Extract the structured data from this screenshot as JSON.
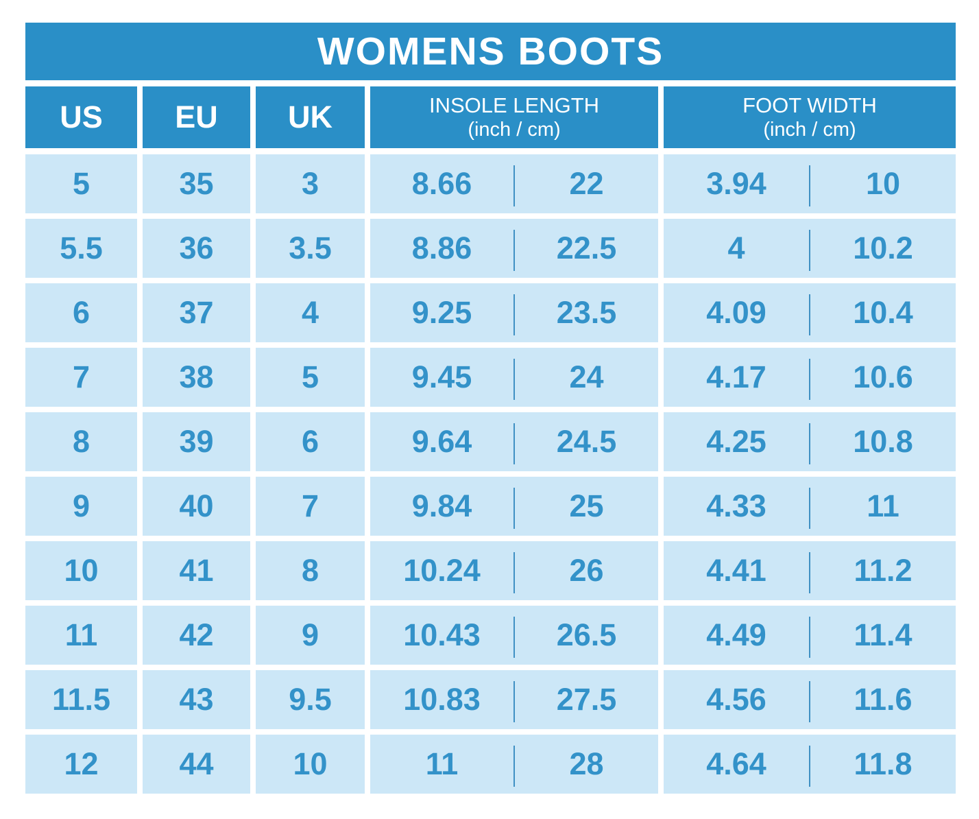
{
  "title": "WOMENS BOOTS",
  "colors": {
    "header_blue": "#2a8fc7",
    "cell_light_blue": "#cce7f7",
    "value_blue": "#3392c9",
    "divider_blue": "#3f90c3",
    "background": "#ffffff",
    "header_text": "#ffffff"
  },
  "chart_data": {
    "type": "table",
    "title": "WOMENS BOOTS",
    "columns": [
      {
        "label": "US"
      },
      {
        "label": "EU"
      },
      {
        "label": "UK"
      },
      {
        "label": "INSOLE LENGTH",
        "sub": "(inch / cm)"
      },
      {
        "label": "FOOT WIDTH",
        "sub": "(inch / cm)"
      }
    ],
    "rows": [
      {
        "us": "5",
        "eu": "35",
        "uk": "3",
        "insole_in": "8.66",
        "insole_cm": "22",
        "foot_in": "3.94",
        "foot_cm": "10"
      },
      {
        "us": "5.5",
        "eu": "36",
        "uk": "3.5",
        "insole_in": "8.86",
        "insole_cm": "22.5",
        "foot_in": "4",
        "foot_cm": "10.2"
      },
      {
        "us": "6",
        "eu": "37",
        "uk": "4",
        "insole_in": "9.25",
        "insole_cm": "23.5",
        "foot_in": "4.09",
        "foot_cm": "10.4"
      },
      {
        "us": "7",
        "eu": "38",
        "uk": "5",
        "insole_in": "9.45",
        "insole_cm": "24",
        "foot_in": "4.17",
        "foot_cm": "10.6"
      },
      {
        "us": "8",
        "eu": "39",
        "uk": "6",
        "insole_in": "9.64",
        "insole_cm": "24.5",
        "foot_in": "4.25",
        "foot_cm": "10.8"
      },
      {
        "us": "9",
        "eu": "40",
        "uk": "7",
        "insole_in": "9.84",
        "insole_cm": "25",
        "foot_in": "4.33",
        "foot_cm": "11"
      },
      {
        "us": "10",
        "eu": "41",
        "uk": "8",
        "insole_in": "10.24",
        "insole_cm": "26",
        "foot_in": "4.41",
        "foot_cm": "11.2"
      },
      {
        "us": "11",
        "eu": "42",
        "uk": "9",
        "insole_in": "10.43",
        "insole_cm": "26.5",
        "foot_in": "4.49",
        "foot_cm": "11.4"
      },
      {
        "us": "11.5",
        "eu": "43",
        "uk": "9.5",
        "insole_in": "10.83",
        "insole_cm": "27.5",
        "foot_in": "4.56",
        "foot_cm": "11.6"
      },
      {
        "us": "12",
        "eu": "44",
        "uk": "10",
        "insole_in": "11",
        "insole_cm": "28",
        "foot_in": "4.64",
        "foot_cm": "11.8"
      }
    ]
  }
}
